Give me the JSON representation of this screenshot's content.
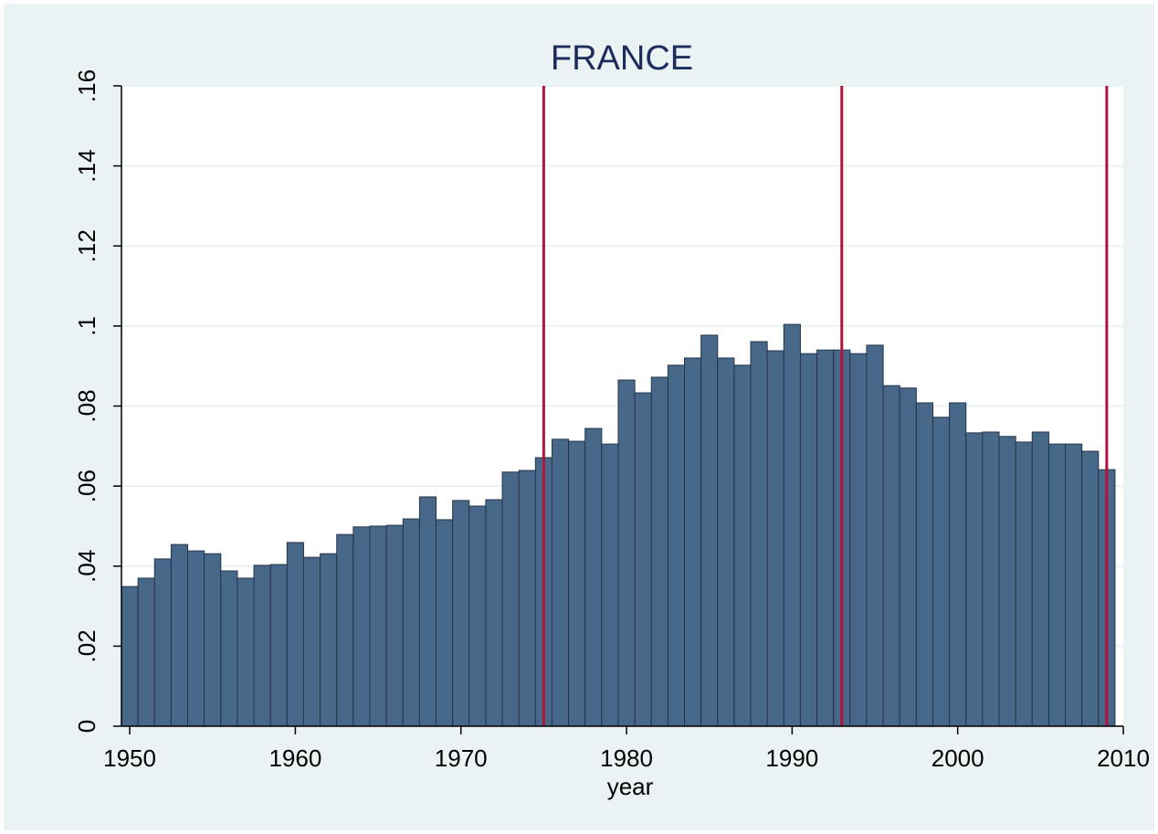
{
  "chart_data": {
    "type": "bar",
    "title": "FRANCE",
    "x_label": "year",
    "x": [
      1950,
      1951,
      1952,
      1953,
      1954,
      1955,
      1956,
      1957,
      1958,
      1959,
      1960,
      1961,
      1962,
      1963,
      1964,
      1965,
      1966,
      1967,
      1968,
      1969,
      1970,
      1971,
      1972,
      1973,
      1974,
      1975,
      1976,
      1977,
      1978,
      1979,
      1980,
      1981,
      1982,
      1983,
      1984,
      1985,
      1986,
      1987,
      1988,
      1989,
      1990,
      1991,
      1992,
      1993,
      1994,
      1995,
      1996,
      1997,
      1998,
      1999,
      2000,
      2001,
      2002,
      2003,
      2004,
      2005,
      2006,
      2007,
      2008,
      2009
    ],
    "values": [
      0.0349,
      0.037,
      0.0418,
      0.0454,
      0.0438,
      0.0431,
      0.0388,
      0.037,
      0.0402,
      0.0404,
      0.0459,
      0.0422,
      0.0431,
      0.0479,
      0.0498,
      0.05,
      0.0502,
      0.0518,
      0.0573,
      0.0516,
      0.0564,
      0.055,
      0.0566,
      0.0635,
      0.0639,
      0.0671,
      0.0717,
      0.0712,
      0.0744,
      0.0705,
      0.0865,
      0.0833,
      0.0872,
      0.0902,
      0.092,
      0.0977,
      0.092,
      0.0902,
      0.0961,
      0.0938,
      0.1004,
      0.0931,
      0.094,
      0.094,
      0.0931,
      0.0952,
      0.0851,
      0.0845,
      0.0808,
      0.0772,
      0.0808,
      0.0733,
      0.0735,
      0.0724,
      0.071,
      0.0735,
      0.0705,
      0.0705,
      0.0687,
      0.0641
    ],
    "color": "#48688a",
    "xlim": [
      1949.5,
      2010
    ],
    "xticks": [
      1950,
      1960,
      1970,
      1980,
      1990,
      2000,
      2010
    ],
    "ylim": [
      0,
      0.16
    ],
    "yticks": [
      0,
      {
        "value": 0.02,
        "label": ".02"
      },
      {
        "value": 0.04,
        "label": ".04"
      },
      {
        "value": 0.06,
        "label": ".06"
      },
      {
        "value": 0.08,
        "label": ".08"
      },
      {
        "value": 0.1,
        "label": ".1"
      },
      {
        "value": 0.12,
        "label": ".12"
      },
      {
        "value": 0.14,
        "label": ".14"
      },
      {
        "value": 0.16,
        "label": ".16"
      }
    ],
    "grid": true,
    "vlines": [
      1975,
      1993,
      2009
    ],
    "vline_color": "#b3123a"
  }
}
